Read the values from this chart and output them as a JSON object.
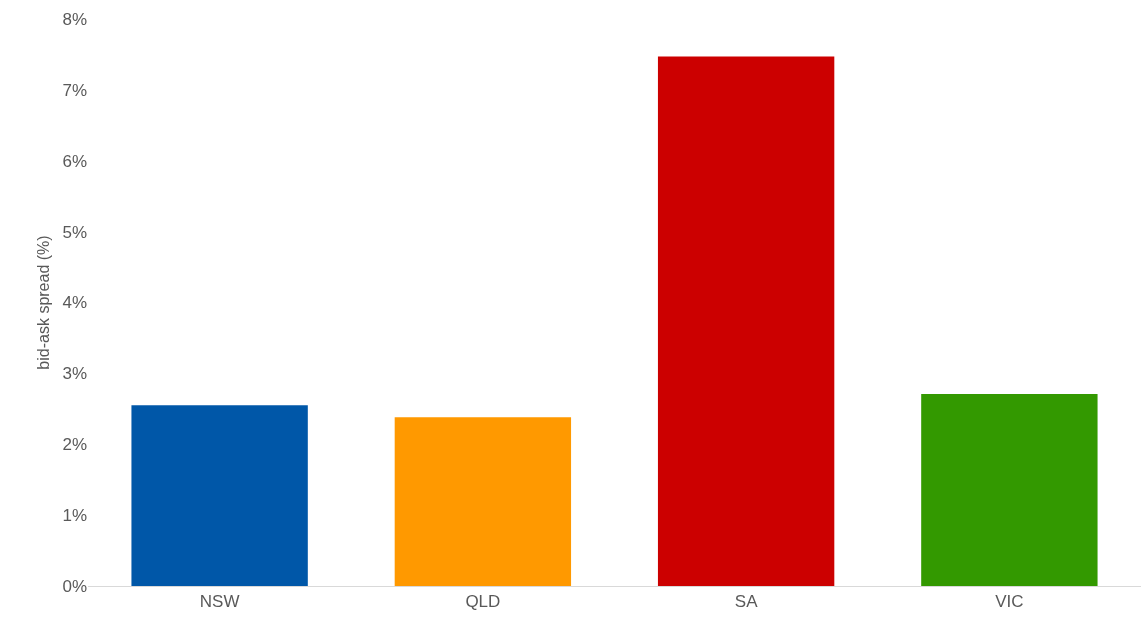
{
  "chart_data": {
    "type": "bar",
    "ylabel": "bid-ask spread (%)",
    "categories": [
      "NSW",
      "QLD",
      "SA",
      "VIC"
    ],
    "values": [
      2.55,
      2.38,
      7.47,
      2.71
    ],
    "colors": [
      "#0057a8",
      "#ff9900",
      "#cc0000",
      "#339900"
    ],
    "ylim": [
      0,
      8
    ],
    "yticks": [
      {
        "value": 0,
        "label": "0%"
      },
      {
        "value": 1,
        "label": "1%"
      },
      {
        "value": 2,
        "label": "2%"
      },
      {
        "value": 3,
        "label": "3%"
      },
      {
        "value": 4,
        "label": "4%"
      },
      {
        "value": 5,
        "label": "5%"
      },
      {
        "value": 6,
        "label": "6%"
      },
      {
        "value": 7,
        "label": "7%"
      },
      {
        "value": 8,
        "label": "8%"
      }
    ],
    "grid": false
  }
}
